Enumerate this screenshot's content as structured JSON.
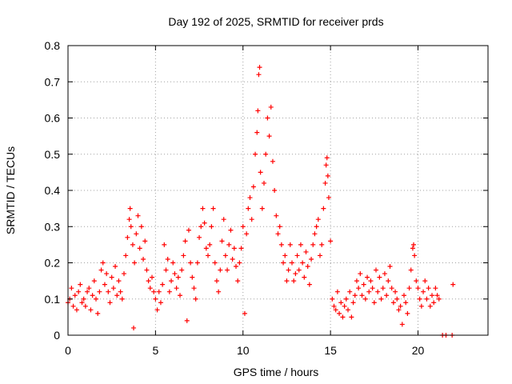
{
  "chart_data": {
    "type": "scatter",
    "title": "Day 192 of 2025, SRMTID for receiver prds",
    "xlabel": "GPS time / hours",
    "ylabel": "SRMTID / TECUs",
    "xlim": [
      0,
      24
    ],
    "ylim": [
      0,
      0.8
    ],
    "x_ticks": [
      0,
      5,
      10,
      15,
      20
    ],
    "x_tick_labels": [
      "0",
      "5",
      "10",
      "15",
      "20"
    ],
    "y_ticks": [
      0,
      0.1,
      0.2,
      0.3,
      0.4,
      0.5,
      0.6,
      0.7,
      0.8
    ],
    "y_tick_labels": [
      "0",
      "0.1",
      "0.2",
      "0.3",
      "0.4",
      "0.5",
      "0.6",
      "0.7",
      "0.8"
    ],
    "grid": true,
    "marker": "plus",
    "series": [
      {
        "name": "SRMTID",
        "color": "#ff0000",
        "points": [
          [
            0.0,
            0.09
          ],
          [
            0.1,
            0.1
          ],
          [
            0.2,
            0.13
          ],
          [
            0.3,
            0.08
          ],
          [
            0.4,
            0.11
          ],
          [
            0.5,
            0.07
          ],
          [
            0.6,
            0.12
          ],
          [
            0.7,
            0.14
          ],
          [
            0.8,
            0.09
          ],
          [
            0.9,
            0.1
          ],
          [
            1.0,
            0.08
          ],
          [
            1.1,
            0.12
          ],
          [
            1.2,
            0.13
          ],
          [
            1.3,
            0.07
          ],
          [
            1.4,
            0.11
          ],
          [
            1.5,
            0.15
          ],
          [
            1.6,
            0.1
          ],
          [
            1.7,
            0.06
          ],
          [
            1.8,
            0.12
          ],
          [
            1.9,
            0.18
          ],
          [
            2.0,
            0.2
          ],
          [
            2.1,
            0.14
          ],
          [
            2.2,
            0.17
          ],
          [
            2.3,
            0.12
          ],
          [
            2.4,
            0.09
          ],
          [
            2.5,
            0.16
          ],
          [
            2.6,
            0.13
          ],
          [
            2.7,
            0.19
          ],
          [
            2.8,
            0.11
          ],
          [
            2.9,
            0.15
          ],
          [
            3.0,
            0.12
          ],
          [
            3.1,
            0.1
          ],
          [
            3.2,
            0.17
          ],
          [
            3.3,
            0.22
          ],
          [
            3.4,
            0.27
          ],
          [
            3.5,
            0.32
          ],
          [
            3.55,
            0.35
          ],
          [
            3.6,
            0.3
          ],
          [
            3.7,
            0.25
          ],
          [
            3.75,
            0.02
          ],
          [
            3.8,
            0.2
          ],
          [
            3.9,
            0.28
          ],
          [
            4.0,
            0.33
          ],
          [
            4.1,
            0.24
          ],
          [
            4.2,
            0.3
          ],
          [
            4.3,
            0.21
          ],
          [
            4.4,
            0.26
          ],
          [
            4.5,
            0.18
          ],
          [
            4.6,
            0.15
          ],
          [
            4.7,
            0.13
          ],
          [
            4.8,
            0.16
          ],
          [
            4.9,
            0.12
          ],
          [
            5.0,
            0.1
          ],
          [
            5.1,
            0.07
          ],
          [
            5.2,
            0.12
          ],
          [
            5.3,
            0.09
          ],
          [
            5.4,
            0.14
          ],
          [
            5.5,
            0.25
          ],
          [
            5.6,
            0.18
          ],
          [
            5.7,
            0.21
          ],
          [
            5.8,
            0.12
          ],
          [
            5.9,
            0.15
          ],
          [
            6.0,
            0.2
          ],
          [
            6.1,
            0.17
          ],
          [
            6.2,
            0.13
          ],
          [
            6.3,
            0.16
          ],
          [
            6.4,
            0.11
          ],
          [
            6.5,
            0.18
          ],
          [
            6.6,
            0.22
          ],
          [
            6.7,
            0.26
          ],
          [
            6.8,
            0.04
          ],
          [
            6.9,
            0.29
          ],
          [
            7.0,
            0.2
          ],
          [
            7.1,
            0.16
          ],
          [
            7.2,
            0.13
          ],
          [
            7.3,
            0.1
          ],
          [
            7.4,
            0.2
          ],
          [
            7.5,
            0.27
          ],
          [
            7.6,
            0.3
          ],
          [
            7.7,
            0.35
          ],
          [
            7.8,
            0.31
          ],
          [
            7.9,
            0.24
          ],
          [
            8.0,
            0.22
          ],
          [
            8.1,
            0.25
          ],
          [
            8.2,
            0.3
          ],
          [
            8.3,
            0.35
          ],
          [
            8.4,
            0.2
          ],
          [
            8.5,
            0.15
          ],
          [
            8.6,
            0.12
          ],
          [
            8.7,
            0.18
          ],
          [
            8.8,
            0.26
          ],
          [
            8.9,
            0.32
          ],
          [
            9.0,
            0.22
          ],
          [
            9.1,
            0.18
          ],
          [
            9.2,
            0.25
          ],
          [
            9.3,
            0.29
          ],
          [
            9.4,
            0.21
          ],
          [
            9.5,
            0.24
          ],
          [
            9.6,
            0.19
          ],
          [
            9.7,
            0.15
          ],
          [
            9.8,
            0.2
          ],
          [
            9.9,
            0.24
          ],
          [
            10.0,
            0.3
          ],
          [
            10.1,
            0.06
          ],
          [
            10.2,
            0.28
          ],
          [
            10.3,
            0.35
          ],
          [
            10.4,
            0.38
          ],
          [
            10.5,
            0.32
          ],
          [
            10.6,
            0.41
          ],
          [
            10.7,
            0.5
          ],
          [
            10.8,
            0.56
          ],
          [
            10.85,
            0.62
          ],
          [
            10.9,
            0.72
          ],
          [
            10.95,
            0.74
          ],
          [
            11.0,
            0.45
          ],
          [
            11.1,
            0.35
          ],
          [
            11.2,
            0.42
          ],
          [
            11.3,
            0.5
          ],
          [
            11.4,
            0.6
          ],
          [
            11.5,
            0.55
          ],
          [
            11.6,
            0.63
          ],
          [
            11.7,
            0.48
          ],
          [
            11.8,
            0.4
          ],
          [
            11.9,
            0.33
          ],
          [
            12.0,
            0.28
          ],
          [
            12.1,
            0.3
          ],
          [
            12.2,
            0.25
          ],
          [
            12.3,
            0.2
          ],
          [
            12.4,
            0.22
          ],
          [
            12.5,
            0.15
          ],
          [
            12.6,
            0.18
          ],
          [
            12.7,
            0.25
          ],
          [
            12.8,
            0.2
          ],
          [
            12.9,
            0.15
          ],
          [
            13.0,
            0.17
          ],
          [
            13.1,
            0.22
          ],
          [
            13.2,
            0.18
          ],
          [
            13.3,
            0.25
          ],
          [
            13.4,
            0.2
          ],
          [
            13.5,
            0.16
          ],
          [
            13.6,
            0.23
          ],
          [
            13.7,
            0.19
          ],
          [
            13.8,
            0.14
          ],
          [
            13.9,
            0.21
          ],
          [
            14.0,
            0.25
          ],
          [
            14.1,
            0.28
          ],
          [
            14.2,
            0.3
          ],
          [
            14.3,
            0.32
          ],
          [
            14.4,
            0.22
          ],
          [
            14.5,
            0.25
          ],
          [
            14.6,
            0.35
          ],
          [
            14.7,
            0.42
          ],
          [
            14.75,
            0.47
          ],
          [
            14.8,
            0.49
          ],
          [
            14.85,
            0.44
          ],
          [
            14.9,
            0.38
          ],
          [
            15.0,
            0.26
          ],
          [
            15.1,
            0.1
          ],
          [
            15.2,
            0.08
          ],
          [
            15.3,
            0.07
          ],
          [
            15.4,
            0.12
          ],
          [
            15.5,
            0.06
          ],
          [
            15.6,
            0.09
          ],
          [
            15.7,
            0.05
          ],
          [
            15.8,
            0.08
          ],
          [
            15.9,
            0.1
          ],
          [
            16.0,
            0.07
          ],
          [
            16.1,
            0.12
          ],
          [
            16.2,
            0.05
          ],
          [
            16.3,
            0.09
          ],
          [
            16.4,
            0.11
          ],
          [
            16.5,
            0.15
          ],
          [
            16.6,
            0.13
          ],
          [
            16.7,
            0.17
          ],
          [
            16.8,
            0.11
          ],
          [
            16.9,
            0.14
          ],
          [
            17.0,
            0.1
          ],
          [
            17.1,
            0.16
          ],
          [
            17.2,
            0.12
          ],
          [
            17.3,
            0.15
          ],
          [
            17.4,
            0.13
          ],
          [
            17.5,
            0.09
          ],
          [
            17.6,
            0.18
          ],
          [
            17.7,
            0.12
          ],
          [
            17.8,
            0.16
          ],
          [
            17.9,
            0.1
          ],
          [
            18.0,
            0.13
          ],
          [
            18.1,
            0.17
          ],
          [
            18.2,
            0.11
          ],
          [
            18.3,
            0.15
          ],
          [
            18.4,
            0.19
          ],
          [
            18.5,
            0.13
          ],
          [
            18.6,
            0.09
          ],
          [
            18.7,
            0.12
          ],
          [
            18.8,
            0.1
          ],
          [
            18.9,
            0.07
          ],
          [
            19.0,
            0.08
          ],
          [
            19.1,
            0.03
          ],
          [
            19.2,
            0.11
          ],
          [
            19.3,
            0.09
          ],
          [
            19.4,
            0.06
          ],
          [
            19.5,
            0.13
          ],
          [
            19.6,
            0.18
          ],
          [
            19.7,
            0.24
          ],
          [
            19.75,
            0.25
          ],
          [
            19.8,
            0.22
          ],
          [
            19.9,
            0.15
          ],
          [
            20.0,
            0.13
          ],
          [
            20.1,
            0.1
          ],
          [
            20.2,
            0.08
          ],
          [
            20.3,
            0.12
          ],
          [
            20.4,
            0.15
          ],
          [
            20.5,
            0.1
          ],
          [
            20.6,
            0.13
          ],
          [
            20.7,
            0.08
          ],
          [
            20.8,
            0.11
          ],
          [
            20.9,
            0.09
          ],
          [
            21.0,
            0.13
          ],
          [
            21.1,
            0.11
          ],
          [
            21.2,
            0.1
          ],
          [
            21.4,
            0.0
          ],
          [
            21.6,
            0.0
          ],
          [
            22.0,
            0.14
          ],
          [
            21.95,
            0.0
          ]
        ]
      }
    ]
  }
}
